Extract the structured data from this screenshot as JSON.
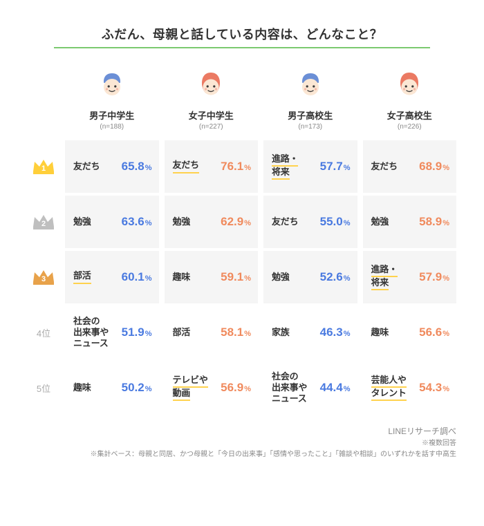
{
  "title": "ふだん、母親と話している内容は、どんなこと？",
  "title_fontsize": 18,
  "title_underline_color": "#7bc96f",
  "background_color": "#ffffff",
  "shade_color": "#f5f5f5",
  "accent_underline_color": "#ffd24d",
  "crown_colors": {
    "1": "#ffcf3a",
    "2": "#bfbfbf",
    "3": "#e8a24a"
  },
  "rank_text_color": "#aaaaaa",
  "columns": [
    {
      "key": "m_jhs",
      "title": "男子中学生",
      "sub": "(n=188)",
      "avatar": "boy_blue",
      "value_color": "#4a7ae0",
      "label_fontsize": 13
    },
    {
      "key": "f_jhs",
      "title": "女子中学生",
      "sub": "(n=227)",
      "avatar": "girl_red",
      "value_color": "#f08a5d",
      "label_fontsize": 13
    },
    {
      "key": "m_hs",
      "title": "男子高校生",
      "sub": "(n=173)",
      "avatar": "boy_blue",
      "value_color": "#4a7ae0",
      "label_fontsize": 13
    },
    {
      "key": "f_hs",
      "title": "女子高校生",
      "sub": "(n=226)",
      "avatar": "girl_red",
      "value_color": "#f08a5d",
      "label_fontsize": 13
    }
  ],
  "rows": [
    {
      "rank": "1",
      "type": "crown",
      "cells": [
        {
          "label": "友だち",
          "value": "65.8",
          "underline": false
        },
        {
          "label": "友だち",
          "value": "76.1",
          "underline": true
        },
        {
          "label": "進路・\n将来",
          "value": "57.7",
          "underline": true
        },
        {
          "label": "友だち",
          "value": "68.9",
          "underline": false
        }
      ]
    },
    {
      "rank": "2",
      "type": "crown",
      "cells": [
        {
          "label": "勉強",
          "value": "63.6",
          "underline": false
        },
        {
          "label": "勉強",
          "value": "62.9",
          "underline": false
        },
        {
          "label": "友だち",
          "value": "55.0",
          "underline": false
        },
        {
          "label": "勉強",
          "value": "58.9",
          "underline": false
        }
      ]
    },
    {
      "rank": "3",
      "type": "crown",
      "cells": [
        {
          "label": "部活",
          "value": "60.1",
          "underline": true
        },
        {
          "label": "趣味",
          "value": "59.1",
          "underline": false
        },
        {
          "label": "勉強",
          "value": "52.6",
          "underline": false
        },
        {
          "label": "進路・\n将来",
          "value": "57.9",
          "underline": true
        }
      ]
    },
    {
      "rank": "4位",
      "type": "text",
      "cells": [
        {
          "label": "社会の\n出来事や\nニュース",
          "value": "51.9",
          "underline": false
        },
        {
          "label": "部活",
          "value": "58.1",
          "underline": false
        },
        {
          "label": "家族",
          "value": "46.3",
          "underline": false
        },
        {
          "label": "趣味",
          "value": "56.6",
          "underline": false
        }
      ]
    },
    {
      "rank": "5位",
      "type": "text",
      "cells": [
        {
          "label": "趣味",
          "value": "50.2",
          "underline": false
        },
        {
          "label": "テレビや\n動画",
          "value": "56.9",
          "underline": true
        },
        {
          "label": "社会の\n出来事や\nニュース",
          "value": "44.4",
          "underline": false
        },
        {
          "label": "芸能人や\nタレント",
          "value": "54.3",
          "underline": true
        }
      ]
    }
  ],
  "font": {
    "title_size": 18,
    "col_title_size": 13,
    "label_size": 13,
    "value_size": 17,
    "value_unit_size": 11
  },
  "footnotes": [
    "LINEリサーチ調べ",
    "※複数回答",
    "※集計ベース：母親と同居、かつ母親と「今日の出来事」「感情や思ったこと」「雑談や相談」のいずれかを話す中高生"
  ]
}
